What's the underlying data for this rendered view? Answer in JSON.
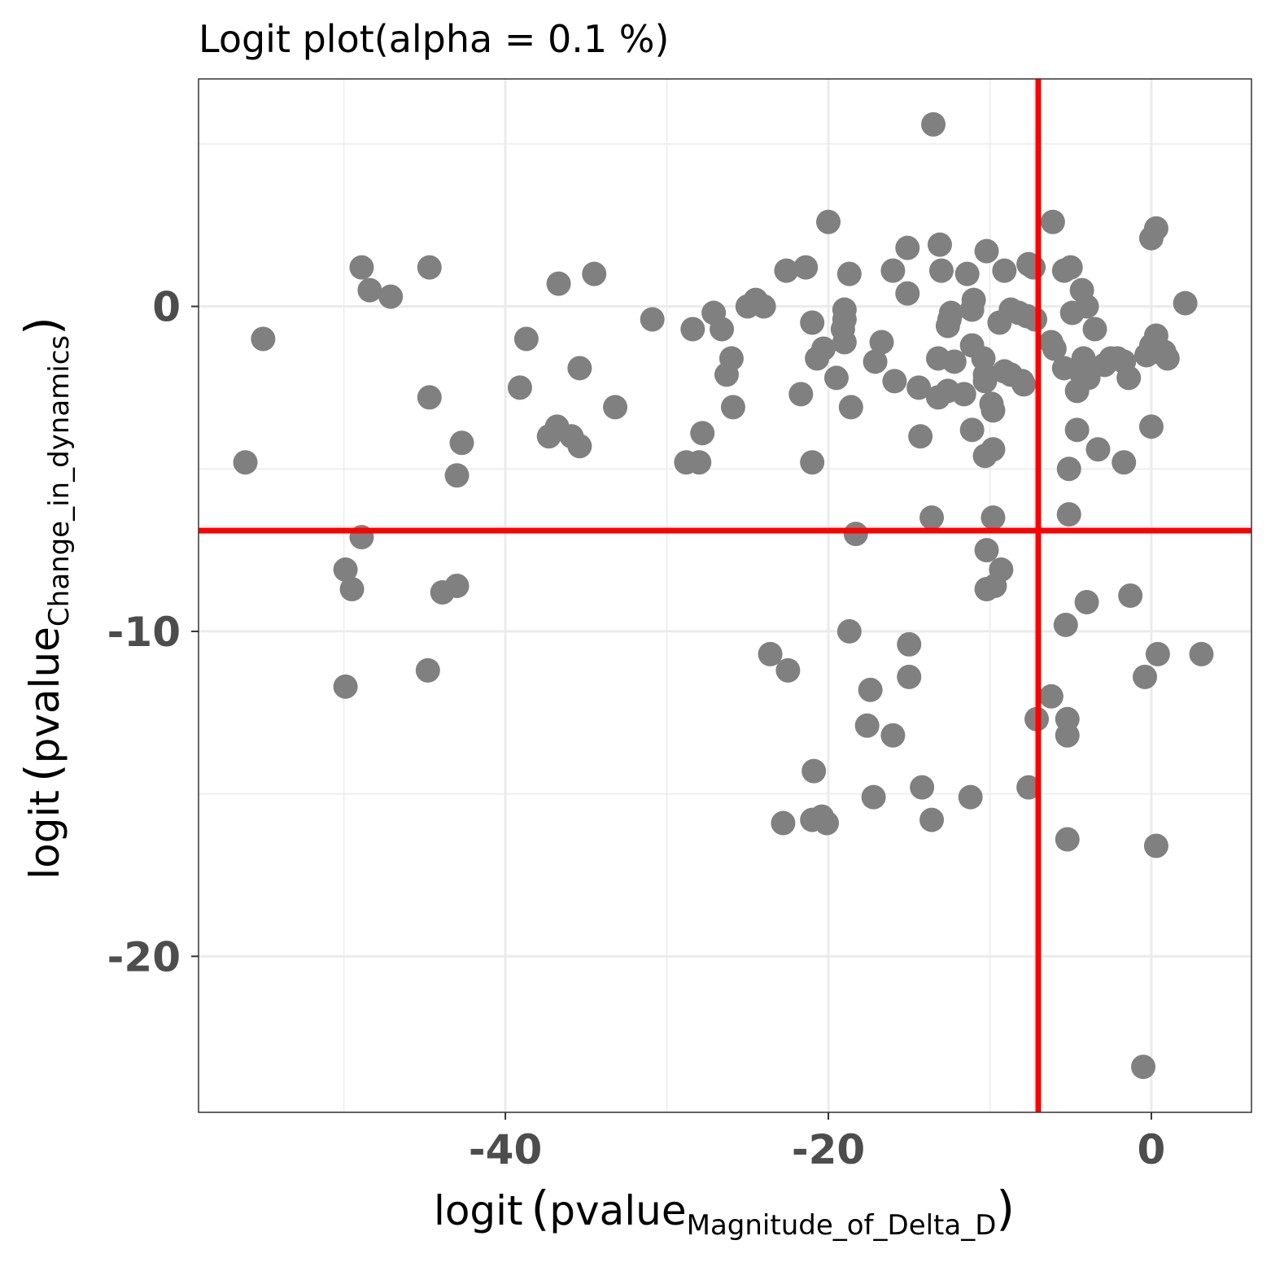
{
  "chart_data": {
    "type": "scatter",
    "title": "Logit plot(alpha =  0.1 %)",
    "xlabel": {
      "prefix": "logit",
      "main": "pvalue",
      "subscript": "Magnitude_of_Delta_D"
    },
    "ylabel": {
      "prefix": "logit",
      "main": "pvalue",
      "subscript": "Change_in_dynamics"
    },
    "xlim": [
      -59,
      6.2
    ],
    "ylim": [
      -24.8,
      7.0
    ],
    "x_ticks": [
      -40,
      -20,
      0
    ],
    "x_tick_labels": [
      "-40",
      "-20",
      "0"
    ],
    "y_ticks": [
      -20,
      -10,
      0
    ],
    "y_tick_labels": [
      "-20",
      "-10",
      "0"
    ],
    "grid": true,
    "point_color": "#808080",
    "threshold_color": "#ff0000",
    "thresholds": {
      "x": -7,
      "y": -6.9
    },
    "points": [
      [
        -13.5,
        5.6
      ],
      [
        -6.1,
        2.6
      ],
      [
        -20.0,
        2.6
      ],
      [
        0.3,
        2.4
      ],
      [
        0.0,
        2.1
      ],
      [
        -13.1,
        1.9
      ],
      [
        -15.1,
        1.8
      ],
      [
        -10.2,
        1.7
      ],
      [
        -7.6,
        1.3
      ],
      [
        -7.3,
        1.2
      ],
      [
        -5.0,
        1.2
      ],
      [
        -5.4,
        1.1
      ],
      [
        -9.1,
        1.1
      ],
      [
        -13.0,
        1.1
      ],
      [
        -16.0,
        1.1
      ],
      [
        -11.4,
        1.0
      ],
      [
        -18.7,
        1.0
      ],
      [
        -21.4,
        1.2
      ],
      [
        -22.6,
        1.1
      ],
      [
        -4.3,
        0.5
      ],
      [
        -15.1,
        0.4
      ],
      [
        -4.0,
        0.0
      ],
      [
        -11.0,
        0.2
      ],
      [
        -24.5,
        0.2
      ],
      [
        -25.0,
        0.0
      ],
      [
        -24.0,
        0.0
      ],
      [
        -19.0,
        -0.1
      ],
      [
        -27.1,
        -0.2
      ],
      [
        -8.7,
        -0.1
      ],
      [
        -8.2,
        -0.2
      ],
      [
        -7.7,
        -0.3
      ],
      [
        -7.2,
        -0.4
      ],
      [
        -11.1,
        -0.1
      ],
      [
        -12.4,
        -0.2
      ],
      [
        -12.6,
        -0.6
      ],
      [
        -12.5,
        -0.4
      ],
      [
        -9.4,
        -0.5
      ],
      [
        -19.0,
        -0.4
      ],
      [
        -19.1,
        -0.7
      ],
      [
        -21.0,
        -0.5
      ],
      [
        -4.9,
        -0.2
      ],
      [
        -3.5,
        -0.7
      ],
      [
        -26.6,
        -0.7
      ],
      [
        -28.4,
        -0.7
      ],
      [
        -30.9,
        -0.4
      ],
      [
        0.3,
        -0.9
      ],
      [
        0.0,
        -1.2
      ],
      [
        0.4,
        -1.4
      ],
      [
        0.8,
        -1.4
      ],
      [
        1.0,
        -1.6
      ],
      [
        -19.0,
        -1.1
      ],
      [
        -16.7,
        -1.1
      ],
      [
        -20.3,
        -1.3
      ],
      [
        -20.7,
        -1.6
      ],
      [
        -11.1,
        -1.2
      ],
      [
        -10.4,
        -1.6
      ],
      [
        -13.2,
        -1.6
      ],
      [
        -12.2,
        -1.7
      ],
      [
        -6.2,
        -1.1
      ],
      [
        -6.0,
        -1.3
      ],
      [
        -2.5,
        -1.6
      ],
      [
        -2.1,
        -1.6
      ],
      [
        -1.7,
        -1.7
      ],
      [
        -2.9,
        -1.8
      ],
      [
        -4.2,
        -1.6
      ],
      [
        -5.4,
        -1.9
      ],
      [
        -4.3,
        -2.1
      ],
      [
        -3.9,
        -2.2
      ],
      [
        -1.4,
        -2.2
      ],
      [
        -0.3,
        -1.5
      ],
      [
        -9.1,
        -2.0
      ],
      [
        -10.3,
        -2.1
      ],
      [
        -10.3,
        -2.3
      ],
      [
        -8.7,
        -2.1
      ],
      [
        -8.0,
        -2.3
      ],
      [
        -7.9,
        -2.4
      ],
      [
        -19.5,
        -2.2
      ],
      [
        -17.1,
        -1.7
      ],
      [
        -15.9,
        -2.3
      ],
      [
        -14.4,
        -2.5
      ],
      [
        -13.2,
        -2.8
      ],
      [
        -12.6,
        -2.6
      ],
      [
        -11.6,
        -2.7
      ],
      [
        -21.7,
        -2.7
      ],
      [
        -4.6,
        -2.6
      ],
      [
        -26.0,
        -1.6
      ],
      [
        -26.3,
        -2.1
      ],
      [
        -25.9,
        -3.1
      ],
      [
        -18.6,
        -3.1
      ],
      [
        -9.8,
        -3.2
      ],
      [
        -9.9,
        -3.0
      ],
      [
        -11.1,
        -3.8
      ],
      [
        0.0,
        -3.7
      ],
      [
        -4.6,
        -3.8
      ],
      [
        -3.3,
        -4.4
      ],
      [
        -9.8,
        -4.4
      ],
      [
        -10.3,
        -4.6
      ],
      [
        -1.7,
        -4.8
      ],
      [
        -5.1,
        -5.0
      ],
      [
        -5.1,
        -6.4
      ],
      [
        -9.8,
        -6.5
      ],
      [
        -14.3,
        -4.0
      ],
      [
        -13.6,
        -6.5
      ],
      [
        -18.3,
        -7.0
      ],
      [
        -21.0,
        -4.8
      ],
      [
        -27.8,
        -3.9
      ],
      [
        -28.0,
        -4.8
      ],
      [
        -28.8,
        -4.8
      ],
      [
        -33.2,
        -3.1
      ],
      [
        -34.5,
        1.0
      ],
      [
        -36.7,
        0.7
      ],
      [
        -35.4,
        -1.9
      ],
      [
        -38.7,
        -1.0
      ],
      [
        -39.1,
        -2.5
      ],
      [
        -37.3,
        -4.0
      ],
      [
        -36.8,
        -3.7
      ],
      [
        -35.9,
        -4.0
      ],
      [
        -35.4,
        -4.3
      ],
      [
        -42.7,
        -4.2
      ],
      [
        -43.0,
        -5.2
      ],
      [
        -44.7,
        -2.8
      ],
      [
        -44.7,
        1.2
      ],
      [
        -47.1,
        0.3
      ],
      [
        -48.4,
        0.5
      ],
      [
        -48.9,
        1.2
      ],
      [
        -48.9,
        -7.1
      ],
      [
        -49.9,
        -8.1
      ],
      [
        -49.5,
        -8.7
      ],
      [
        -43.9,
        -8.8
      ],
      [
        -43.0,
        -8.6
      ],
      [
        -44.8,
        -11.2
      ],
      [
        -49.9,
        -11.7
      ],
      [
        -55.0,
        -1.0
      ],
      [
        -56.1,
        -4.8
      ],
      [
        -10.2,
        -7.5
      ],
      [
        -9.3,
        -8.1
      ],
      [
        -9.7,
        -8.6
      ],
      [
        -10.2,
        -8.7
      ],
      [
        -4.0,
        -9.1
      ],
      [
        -1.3,
        -8.9
      ],
      [
        -5.3,
        -9.8
      ],
      [
        -18.7,
        -10.0
      ],
      [
        -23.6,
        -10.7
      ],
      [
        -22.5,
        -11.2
      ],
      [
        -15.0,
        -10.4
      ],
      [
        -15.0,
        -11.4
      ],
      [
        -17.4,
        -11.8
      ],
      [
        -17.6,
        -12.9
      ],
      [
        -16.0,
        -13.2
      ],
      [
        -6.2,
        -12.0
      ],
      [
        -7.1,
        -12.7
      ],
      [
        -5.2,
        -12.7
      ],
      [
        -5.2,
        -13.2
      ],
      [
        -0.4,
        -11.4
      ],
      [
        0.4,
        -10.7
      ],
      [
        3.1,
        -10.7
      ],
      [
        -20.9,
        -14.3
      ],
      [
        -22.8,
        -15.9
      ],
      [
        -21.0,
        -15.8
      ],
      [
        -20.4,
        -15.7
      ],
      [
        -20.1,
        -15.9
      ],
      [
        -17.2,
        -15.1
      ],
      [
        -14.2,
        -14.8
      ],
      [
        -13.6,
        -15.8
      ],
      [
        -11.2,
        -15.1
      ],
      [
        -7.6,
        -14.8
      ],
      [
        -5.2,
        -16.4
      ],
      [
        0.3,
        -16.6
      ],
      [
        -0.5,
        -23.4
      ],
      [
        2.1,
        0.1
      ]
    ]
  }
}
